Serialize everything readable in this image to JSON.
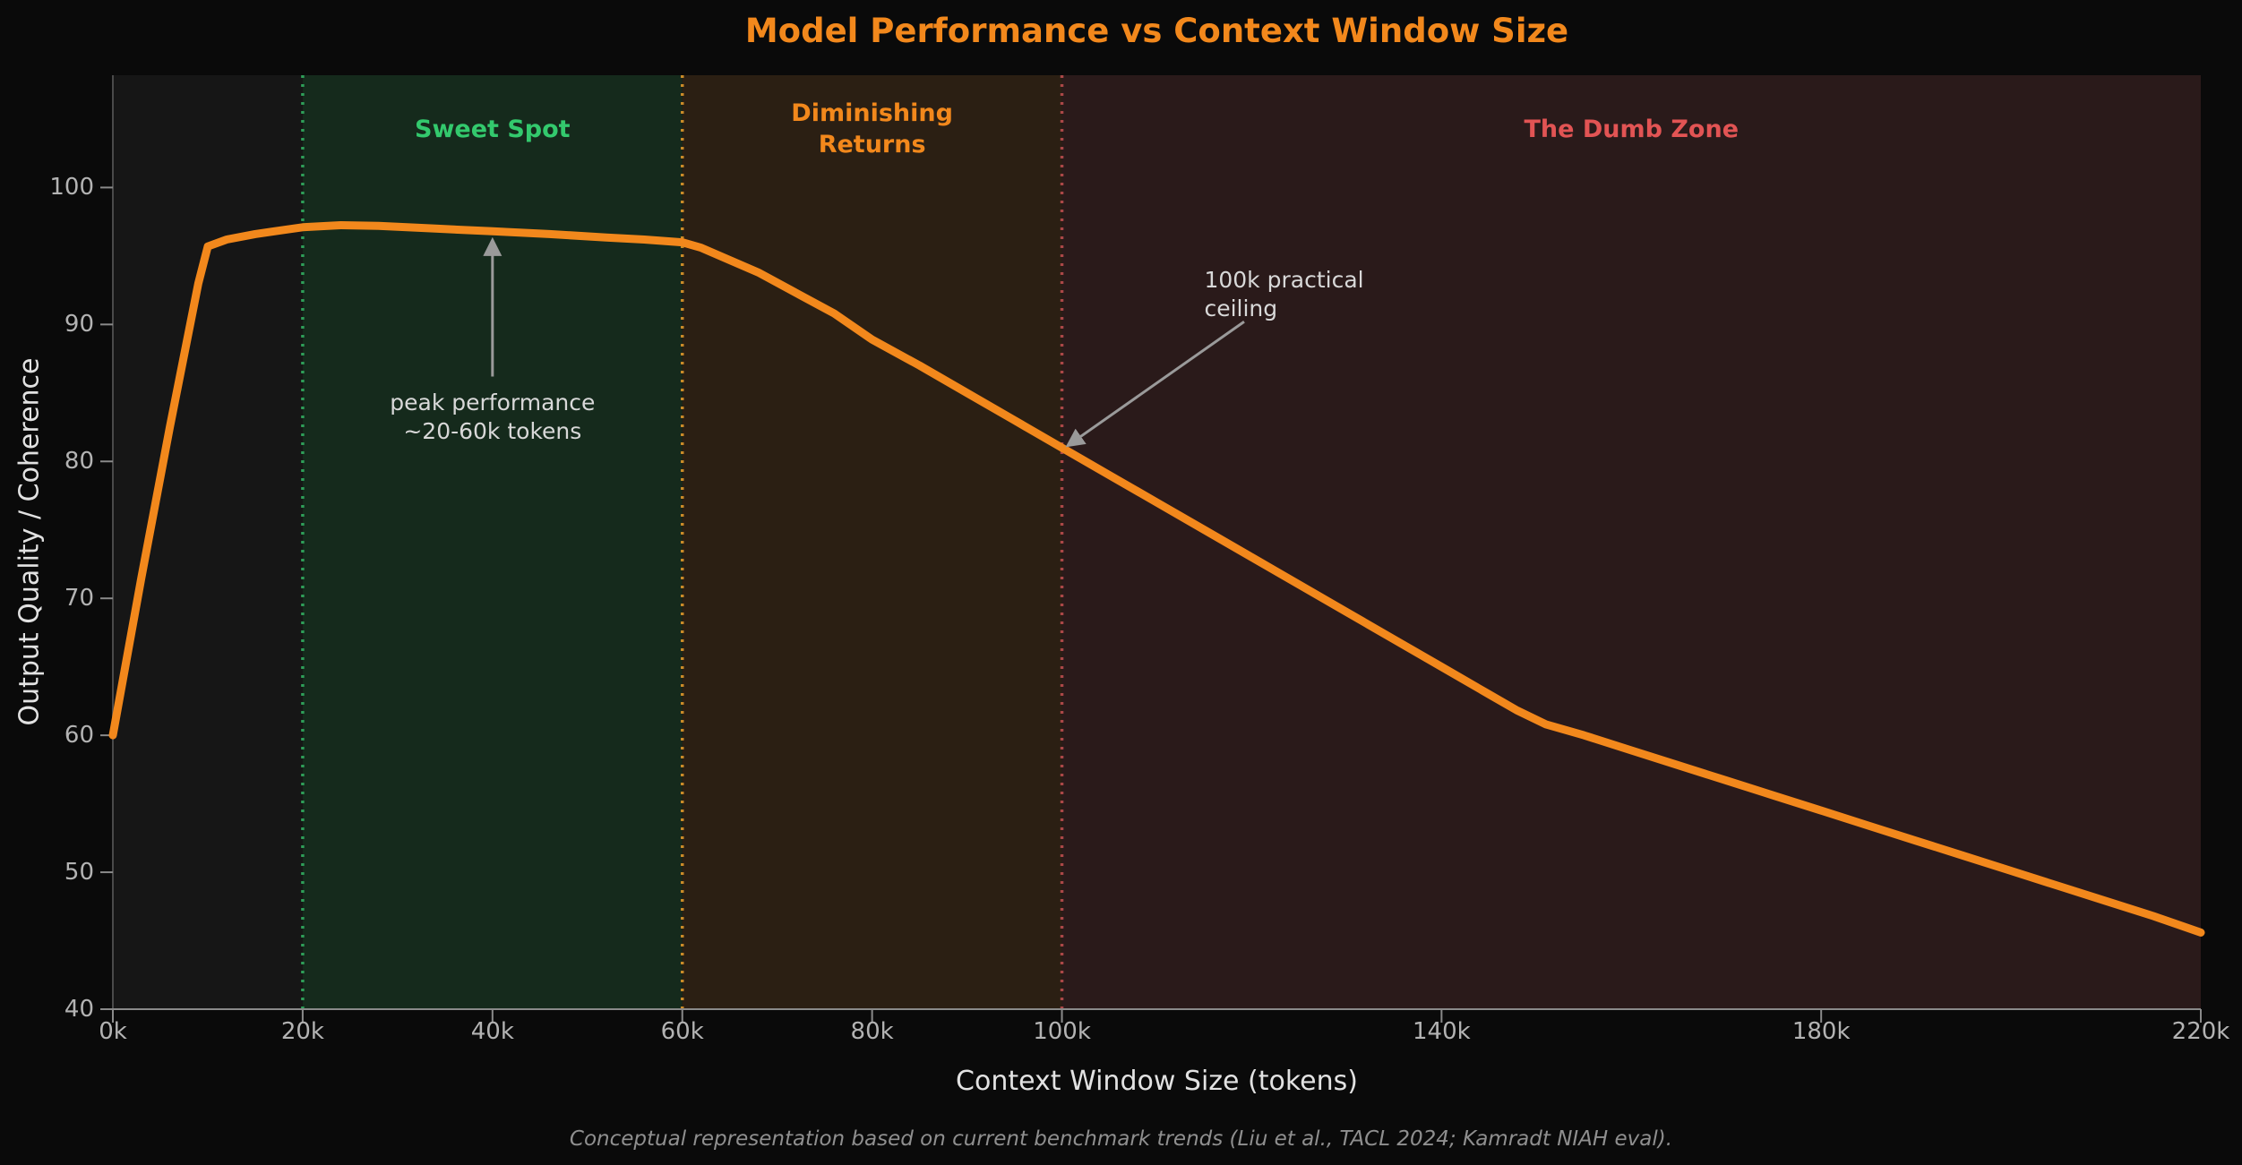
{
  "title": "Model Performance vs Context Window Size",
  "footer": "Conceptual representation based on current benchmark trends (Liu et al., TACL 2024; Kamradt NIAH eval).",
  "colors": {
    "accent_orange": "#f2881c",
    "sweet_green": "#33c96d",
    "dumb_red": "#e25454",
    "annotation_gray": "#9a9a9a",
    "plot_bg": "#161616",
    "figure_bg": "#0a0a0a"
  },
  "chart_data": {
    "type": "line",
    "title": "Model Performance vs Context Window Size",
    "xlabel": "Context Window Size (tokens)",
    "ylabel": "Output Quality / Coherence",
    "xlim": [
      0,
      220
    ],
    "ylim": [
      40,
      108.2
    ],
    "grid": false,
    "legend": null,
    "xticks": {
      "values": [
        0,
        20,
        40,
        60,
        80,
        100,
        140,
        180,
        220
      ],
      "labels": [
        "0k",
        "20k",
        "40k",
        "60k",
        "80k",
        "100k",
        "140k",
        "180k",
        "220k"
      ]
    },
    "yticks": {
      "values": [
        40,
        50,
        60,
        70,
        80,
        90,
        100
      ],
      "labels": [
        "40",
        "50",
        "60",
        "70",
        "80",
        "90",
        "100"
      ]
    },
    "series": [
      {
        "name": "Output quality",
        "color": "#f2881c",
        "points": [
          [
            0,
            60
          ],
          [
            3,
            71.5
          ],
          [
            6,
            82.5
          ],
          [
            8,
            89.5
          ],
          [
            9,
            93
          ],
          [
            10,
            95.7
          ],
          [
            12,
            96.2
          ],
          [
            15,
            96.6
          ],
          [
            18,
            96.9
          ],
          [
            20,
            97.1
          ],
          [
            24,
            97.25
          ],
          [
            28,
            97.2
          ],
          [
            34,
            97.0
          ],
          [
            40,
            96.8
          ],
          [
            46,
            96.6
          ],
          [
            52,
            96.35
          ],
          [
            56,
            96.2
          ],
          [
            60,
            96.0
          ],
          [
            62,
            95.6
          ],
          [
            65,
            94.7
          ],
          [
            68,
            93.8
          ],
          [
            72,
            92.3
          ],
          [
            76,
            90.8
          ],
          [
            80,
            88.9
          ],
          [
            85,
            87
          ],
          [
            90,
            85
          ],
          [
            95,
            83
          ],
          [
            100,
            81
          ],
          [
            105,
            79
          ],
          [
            110,
            77
          ],
          [
            115,
            75
          ],
          [
            120,
            73
          ],
          [
            125,
            71
          ],
          [
            130,
            69
          ],
          [
            135,
            67
          ],
          [
            140,
            65
          ],
          [
            145,
            63
          ],
          [
            148,
            61.8
          ],
          [
            151,
            60.8
          ],
          [
            155,
            60
          ],
          [
            160,
            58.9
          ],
          [
            165,
            57.8
          ],
          [
            170,
            56.7
          ],
          [
            175,
            55.6
          ],
          [
            180,
            54.5
          ],
          [
            185,
            53.4
          ],
          [
            190,
            52.3
          ],
          [
            195,
            51.2
          ],
          [
            200,
            50.1
          ],
          [
            205,
            49
          ],
          [
            210,
            47.9
          ],
          [
            215,
            46.8
          ],
          [
            220,
            45.6
          ]
        ]
      }
    ],
    "zones": [
      {
        "label": "Sweet Spot",
        "x_start": 20,
        "x_end": 60,
        "bg": "#152a1c",
        "label_color": "#33c96d",
        "border_color": "#2e9e58"
      },
      {
        "label": "Diminishing\nReturns",
        "x_start": 60,
        "x_end": 100,
        "bg": "#2b1f13",
        "label_color": "#f2881c",
        "border_color": "#c98a28"
      },
      {
        "label": "The Dumb Zone",
        "x_start": 100,
        "x_end": 220,
        "bg": "#2a1a1a",
        "label_color": "#e25454",
        "border_color": "#aa4747"
      }
    ],
    "annotations": [
      {
        "text": "peak performance\n~20-60k tokens",
        "align": "center",
        "xytext": [
          40,
          85.3
        ],
        "arrow_from": [
          40,
          86.2
        ],
        "arrow_to": [
          40,
          96.1
        ]
      },
      {
        "text": "100k practical\nceiling",
        "align": "left",
        "xytext": [
          115,
          94.3
        ],
        "arrow_from": [
          119.2,
          90.2
        ],
        "arrow_to": [
          100.7,
          81.2
        ]
      }
    ]
  }
}
